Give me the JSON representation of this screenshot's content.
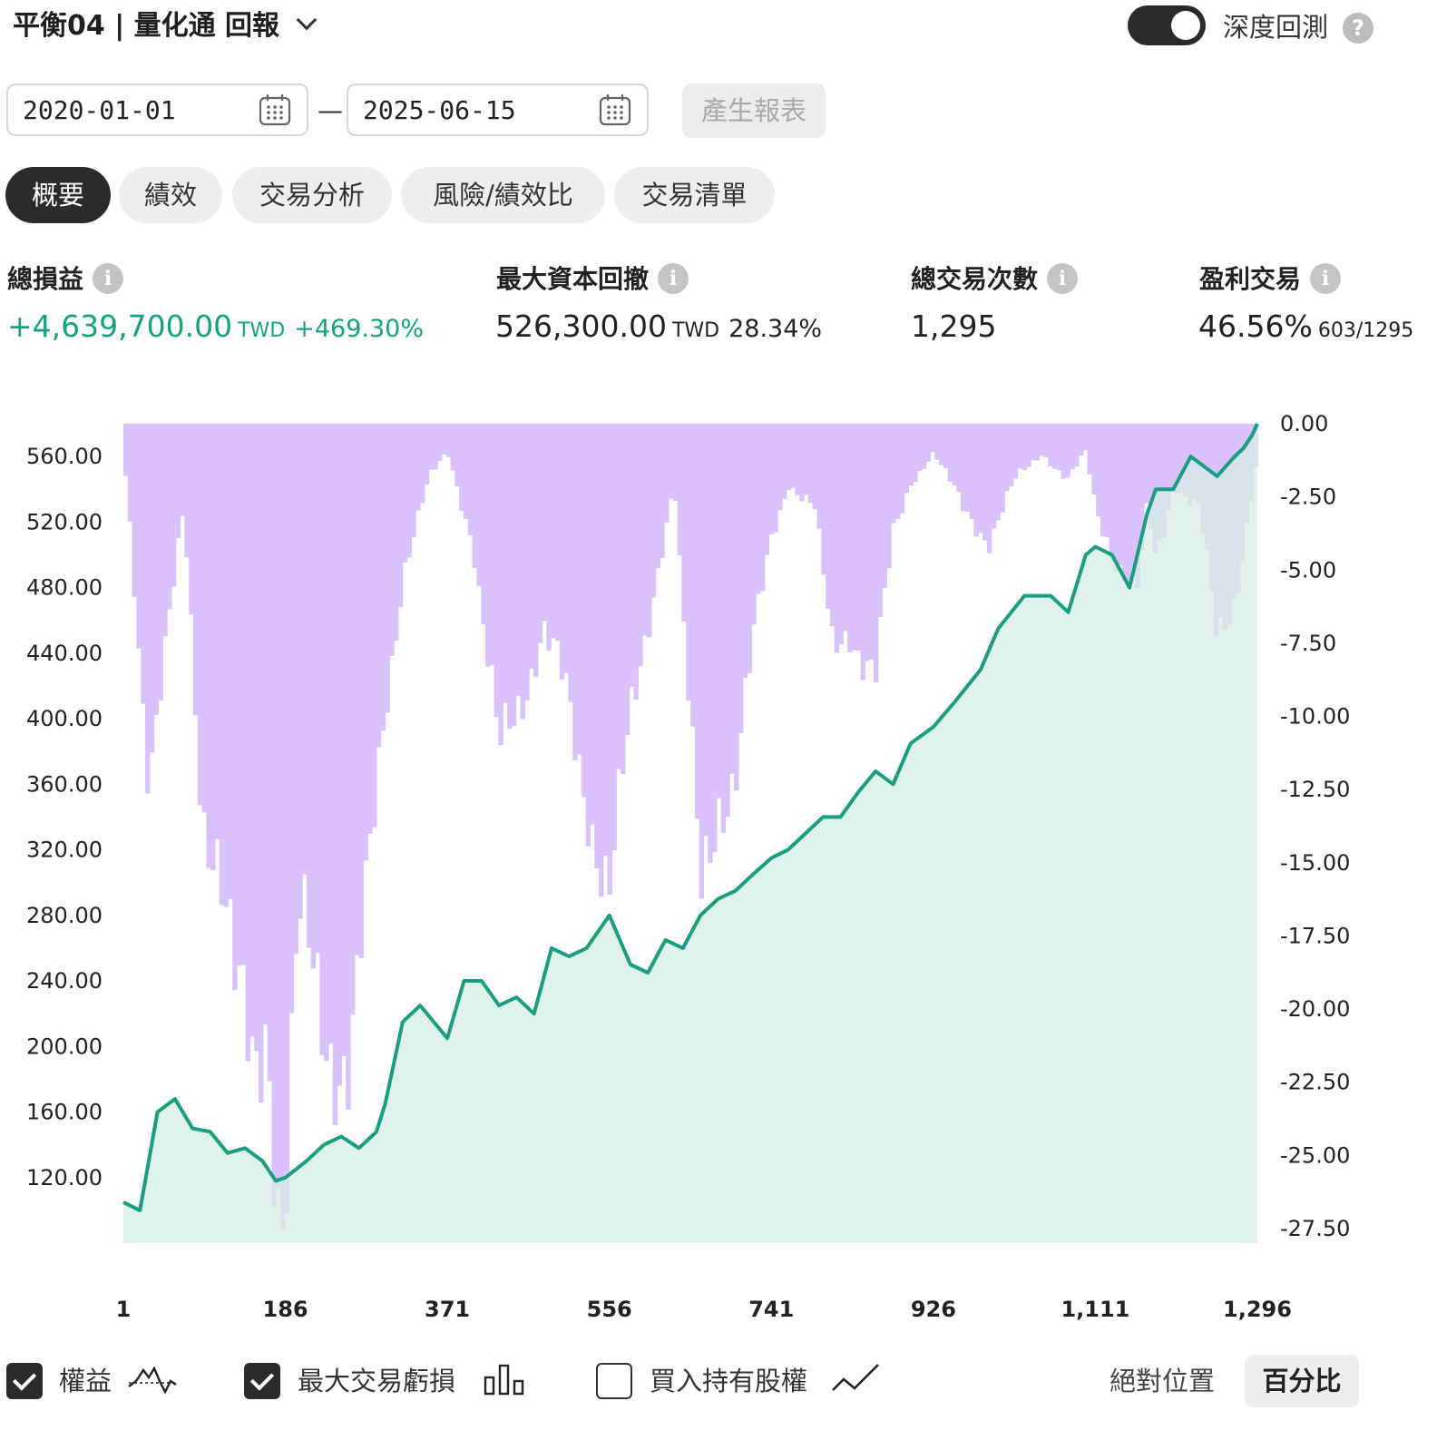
{
  "header": {
    "title": "平衡04 | 量化通 回報",
    "deep_backtest_label": "深度回測",
    "help_glyph": "?"
  },
  "dates": {
    "start": "2020-01-01",
    "separator": "—",
    "end": "2025-06-15",
    "generate_label": "產生報表"
  },
  "tabs": [
    {
      "label": "概要",
      "active": true
    },
    {
      "label": "績效",
      "active": false
    },
    {
      "label": "交易分析",
      "active": false
    },
    {
      "label": "風險/績效比",
      "active": false
    },
    {
      "label": "交易清單",
      "active": false
    }
  ],
  "stats": {
    "total_pnl": {
      "label": "總損益",
      "value": "+4,639,700.00",
      "unit": "TWD",
      "sub": "+469.30%"
    },
    "max_drawdown": {
      "label": "最大資本回撤",
      "value": "526,300.00",
      "unit": "TWD",
      "sub": "28.34%"
    },
    "total_trades": {
      "label": "總交易次數",
      "value": "1,295"
    },
    "winning_trades": {
      "label": "盈利交易",
      "value": "46.56%",
      "sub": "603/1295"
    },
    "info_glyph": "i"
  },
  "chart_data": {
    "type": "line",
    "series": [
      {
        "name": "權益",
        "color": "#1a9e82",
        "x": [
          1,
          20,
          40,
          60,
          80,
          100,
          120,
          140,
          160,
          175,
          186,
          210,
          230,
          250,
          270,
          290,
          300,
          320,
          340,
          371,
          390,
          410,
          430,
          450,
          470,
          490,
          510,
          530,
          556,
          580,
          600,
          620,
          640,
          660,
          680,
          700,
          720,
          741,
          760,
          780,
          800,
          820,
          840,
          860,
          880,
          900,
          926,
          950,
          980,
          1000,
          1030,
          1060,
          1080,
          1100,
          1111,
          1130,
          1150,
          1170,
          1180,
          1200,
          1220,
          1250,
          1270,
          1280,
          1290,
          1296
        ],
        "y": [
          105,
          100,
          160,
          168,
          150,
          148,
          135,
          138,
          130,
          118,
          120,
          130,
          140,
          145,
          138,
          148,
          165,
          215,
          225,
          205,
          240,
          240,
          225,
          230,
          220,
          260,
          255,
          260,
          280,
          250,
          245,
          265,
          260,
          280,
          290,
          295,
          305,
          315,
          320,
          330,
          340,
          340,
          355,
          368,
          360,
          385,
          395,
          410,
          430,
          455,
          475,
          475,
          465,
          500,
          505,
          500,
          480,
          525,
          540,
          540,
          560,
          548,
          560,
          565,
          573,
          580
        ]
      },
      {
        "name": "最大交易虧損",
        "color": "#d9c2fb",
        "x": [
          1,
          10,
          30,
          50,
          70,
          90,
          110,
          130,
          150,
          165,
          178,
          186,
          200,
          230,
          260,
          280,
          300,
          320,
          350,
          371,
          400,
          430,
          450,
          480,
          500,
          520,
          540,
          556,
          590,
          610,
          630,
          660,
          680,
          700,
          720,
          741,
          760,
          790,
          810,
          830,
          860,
          880,
          900,
          926,
          960,
          990,
          1020,
          1050,
          1080,
          1100,
          1111,
          1140,
          1160,
          1170,
          1180,
          1200,
          1230,
          1250,
          1270,
          1296
        ],
        "y": [
          -1,
          -4,
          -12,
          -8,
          -3,
          -13,
          -15,
          -21,
          -23,
          -20,
          -26.5,
          -27.5,
          -18,
          -21,
          -22,
          -17,
          -10,
          -5,
          -2,
          -1,
          -4,
          -12,
          -10,
          -7,
          -9,
          -12,
          -14,
          -16,
          -9,
          -5,
          -2,
          -17,
          -13,
          -12,
          -8,
          -4,
          -2,
          -3,
          -8,
          -7,
          -9,
          -4,
          -2,
          -1,
          -3,
          -4,
          -2,
          -1,
          -2,
          -1,
          -3,
          -5,
          -6,
          -3,
          -5,
          -2,
          -3,
          -8,
          -6,
          -1
        ]
      }
    ],
    "x_ticks": [
      "1",
      "186",
      "371",
      "556",
      "741",
      "926",
      "1,111",
      "1,296"
    ],
    "y_left_ticks": [
      "560.00",
      "520.00",
      "480.00",
      "440.00",
      "400.00",
      "360.00",
      "320.00",
      "280.00",
      "240.00",
      "200.00",
      "160.00",
      "120.00"
    ],
    "y_right_ticks": [
      "0.00",
      "-2.50",
      "-5.00",
      "-7.50",
      "-10.00",
      "-12.50",
      "-15.00",
      "-17.50",
      "-20.00",
      "-22.50",
      "-25.00",
      "-27.50"
    ],
    "ylim_left": [
      80,
      580
    ],
    "ylim_right": [
      -28,
      0
    ],
    "xlim": [
      1,
      1296
    ],
    "grid": false
  },
  "legend": {
    "equity_label": "權益",
    "max_loss_label": "最大交易虧損",
    "buy_hold_label": "買入持有股權",
    "absolute_label": "絕對位置",
    "percent_label": "百分比"
  }
}
